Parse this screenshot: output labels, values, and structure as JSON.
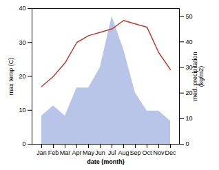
{
  "chart_data": {
    "type": "line",
    "categories": [
      "Jan",
      "Feb",
      "Mar",
      "Apr",
      "May",
      "Jun",
      "Jul",
      "Aug",
      "Sep",
      "Oct",
      "Nov",
      "Dec"
    ],
    "xlabel": "date (month)",
    "ylabel": "max temp (C)",
    "y2label": "med. precipitation\n(kg/m2)",
    "ylim": [
      0,
      40
    ],
    "yticks": [
      0,
      10,
      20,
      30,
      40
    ],
    "y2lim": [
      0,
      53
    ],
    "y2ticks": [
      0,
      10,
      20,
      30,
      40,
      50
    ],
    "series": [
      {
        "type": "area",
        "axis": "y2",
        "color": "#b8c4e8",
        "values": [
          11,
          15,
          11,
          22,
          22,
          30,
          50,
          37,
          20,
          13,
          13,
          9
        ]
      },
      {
        "type": "line",
        "color": "#c0392b",
        "values": [
          17,
          20,
          24,
          30,
          32,
          33,
          34,
          36.5,
          35.5,
          34.5,
          27,
          22
        ]
      }
    ]
  }
}
